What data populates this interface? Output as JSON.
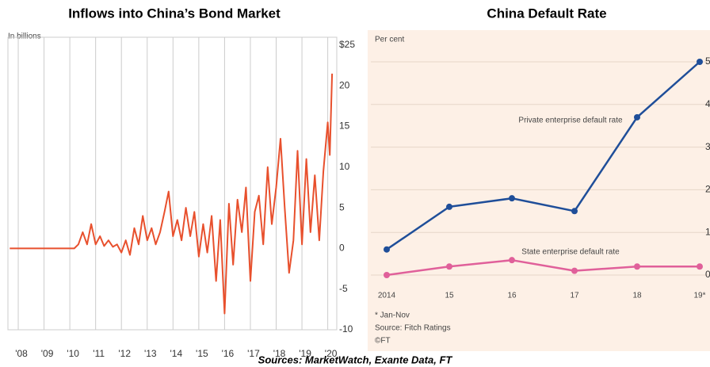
{
  "chart_data": [
    {
      "type": "line",
      "title": "Inflows into China’s Bond Market",
      "ylabel": "In billions",
      "x": [
        2007.67,
        2007.83,
        2008.0,
        2008.17,
        2008.33,
        2008.5,
        2008.67,
        2008.83,
        2009.0,
        2009.17,
        2009.33,
        2009.5,
        2009.67,
        2009.83,
        2010.0,
        2010.17,
        2010.33,
        2010.5,
        2010.67,
        2010.83,
        2011.0,
        2011.17,
        2011.33,
        2011.5,
        2011.67,
        2011.83,
        2012.0,
        2012.17,
        2012.33,
        2012.5,
        2012.67,
        2012.83,
        2013.0,
        2013.17,
        2013.33,
        2013.5,
        2013.67,
        2013.83,
        2014.0,
        2014.17,
        2014.33,
        2014.5,
        2014.67,
        2014.83,
        2015.0,
        2015.17,
        2015.33,
        2015.5,
        2015.67,
        2015.83,
        2016.0,
        2016.17,
        2016.33,
        2016.5,
        2016.67,
        2016.83,
        2017.0,
        2017.17,
        2017.33,
        2017.5,
        2017.67,
        2017.83,
        2018.0,
        2018.17,
        2018.33,
        2018.5,
        2018.67,
        2018.83,
        2019.0,
        2019.17,
        2019.33,
        2019.5,
        2019.67,
        2019.83,
        2020.0,
        2020.08,
        2020.17
      ],
      "series": [
        {
          "color": "#e8502d",
          "values": [
            0,
            0,
            0,
            0,
            0,
            0,
            0,
            0,
            0,
            0,
            0,
            0,
            0,
            0,
            0,
            0,
            0.5,
            2,
            0.5,
            3,
            0.5,
            1.5,
            0.3,
            1,
            0.2,
            0.5,
            -0.5,
            1,
            -0.8,
            2.5,
            0.5,
            4,
            1,
            2.5,
            0.5,
            2,
            4.5,
            7,
            1.5,
            3.5,
            1,
            5,
            1.5,
            4.5,
            -1,
            3,
            -0.5,
            4,
            -4,
            3.5,
            -8,
            5.5,
            -2,
            6,
            2,
            7.5,
            -4,
            4.5,
            6.5,
            0.5,
            10,
            3,
            7.5,
            13.5,
            5,
            -3,
            1,
            12,
            0.5,
            11,
            2,
            9,
            1,
            9.5,
            15.5,
            11.5,
            21.5
          ]
        }
      ],
      "xlim": [
        2007.6,
        2020.35
      ],
      "xticks": [
        {
          "value": 2008,
          "label": "'08"
        },
        {
          "value": 2009,
          "label": "'09"
        },
        {
          "value": 2010,
          "label": "'10"
        },
        {
          "value": 2011,
          "label": "'11"
        },
        {
          "value": 2012,
          "label": "'12"
        },
        {
          "value": 2013,
          "label": "'13"
        },
        {
          "value": 2014,
          "label": "'14"
        },
        {
          "value": 2015,
          "label": "'15"
        },
        {
          "value": 2016,
          "label": "'16"
        },
        {
          "value": 2017,
          "label": "'17"
        },
        {
          "value": 2018,
          "label": "'18"
        },
        {
          "value": 2019,
          "label": "'19"
        },
        {
          "value": 2020,
          "label": "'20"
        }
      ],
      "ylim": [
        -10,
        25
      ],
      "yticks": [
        -10,
        -5,
        0,
        5,
        10,
        15,
        20,
        {
          "value": 25,
          "label": "$25"
        }
      ],
      "grid": "x"
    },
    {
      "type": "line",
      "title": "China  Default Rate",
      "ylabel": "Per cent",
      "categories": [
        "2014",
        "15",
        "16",
        "17",
        "18",
        "19*"
      ],
      "series": [
        {
          "name": "Private enterprise default rate",
          "color": "#1f4e99",
          "values": [
            0.6,
            1.6,
            1.8,
            1.5,
            3.7,
            5.0
          ]
        },
        {
          "name": "State enterprise default rate",
          "color": "#e0609a",
          "values": [
            0.0,
            0.2,
            0.35,
            0.1,
            0.2,
            0.2
          ]
        }
      ],
      "ylim": [
        0,
        5
      ],
      "yticks": [
        0,
        1,
        2,
        3,
        4,
        5
      ],
      "grid": "y",
      "notes": [
        "* Jan-Nov",
        "Source: Fitch Ratings",
        "©FT"
      ]
    }
  ],
  "footer": "Sources: MarketWatch, Exante Data, FT"
}
